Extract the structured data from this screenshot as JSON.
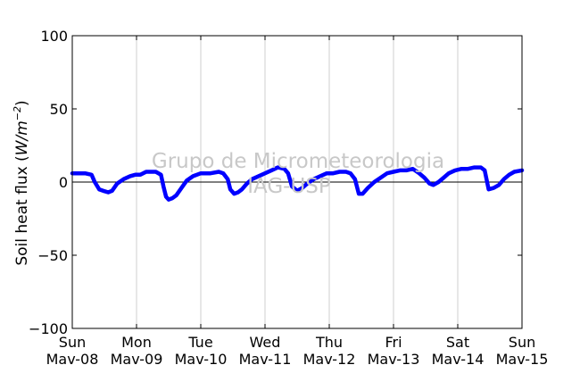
{
  "chart_data": {
    "type": "line",
    "ylabel_text": "Soil heat flux (",
    "ylabel_unit": "W/m",
    "ylabel_exp": "−2",
    "ylabel_close": ")",
    "ylim": [
      -100,
      100
    ],
    "yticks": [
      100,
      50,
      0,
      -50,
      -100
    ],
    "ytick_labels": [
      "100",
      "50",
      "0",
      "−50",
      "−100"
    ],
    "xlim": [
      0,
      7
    ],
    "xtick_days": [
      "Sun",
      "Mon",
      "Tue",
      "Wed",
      "Thu",
      "Fri",
      "Sat",
      "Sun"
    ],
    "xtick_dates": [
      "Mav-08",
      "Mav-09",
      "Mav-10",
      "Mav-11",
      "Mav-12",
      "Mav-13",
      "Mav-14",
      "Mav-15"
    ],
    "grid": "vertical",
    "zero_line": true,
    "series_color": "#0000ff",
    "watermark_line1": "Grupo de Micrometeorologia",
    "watermark_line2": "IAG-USP",
    "series": [
      {
        "x": [
          0.0,
          0.08,
          0.2,
          0.3,
          0.35,
          0.42,
          0.48,
          0.56,
          0.62,
          0.7,
          0.8,
          0.9,
          0.98,
          1.06,
          1.15,
          1.3,
          1.38,
          1.42,
          1.46,
          1.5,
          1.56,
          1.62,
          1.7,
          1.78,
          1.88,
          2.0,
          2.15,
          2.28,
          2.35,
          2.42,
          2.46,
          2.52,
          2.58,
          2.64,
          2.72,
          2.8,
          2.9,
          3.0,
          3.1,
          3.2,
          3.3,
          3.36,
          3.42,
          3.5,
          3.58,
          3.66,
          3.76,
          3.86,
          3.96,
          4.06,
          4.16,
          4.26,
          4.33,
          4.4,
          4.46,
          4.52,
          4.6,
          4.7,
          4.8,
          4.9,
          5.0,
          5.1,
          5.2,
          5.3,
          5.4,
          5.48,
          5.56,
          5.62,
          5.7,
          5.78,
          5.86,
          5.96,
          6.06,
          6.16,
          6.26,
          6.36,
          6.42,
          6.48,
          6.56,
          6.64,
          6.72,
          6.8,
          6.88,
          7.0
        ],
        "y": [
          6,
          6,
          6,
          5,
          0,
          -5,
          -6,
          -7,
          -6,
          -1,
          2,
          4,
          5,
          5,
          7,
          7,
          5,
          -3,
          -10,
          -12,
          -11,
          -9,
          -4,
          1,
          4,
          6,
          6,
          7,
          6,
          2,
          -5,
          -8,
          -7,
          -5,
          -1,
          2,
          4,
          6,
          8,
          10,
          9,
          6,
          -3,
          -6,
          -4,
          -1,
          2,
          4,
          6,
          6,
          7,
          7,
          6,
          2,
          -8,
          -8,
          -4,
          0,
          3,
          6,
          7,
          8,
          8,
          9,
          6,
          3,
          -1,
          -2,
          0,
          3,
          6,
          8,
          9,
          9,
          10,
          10,
          8,
          -5,
          -4,
          -2,
          2,
          5,
          7,
          8
        ]
      }
    ]
  }
}
